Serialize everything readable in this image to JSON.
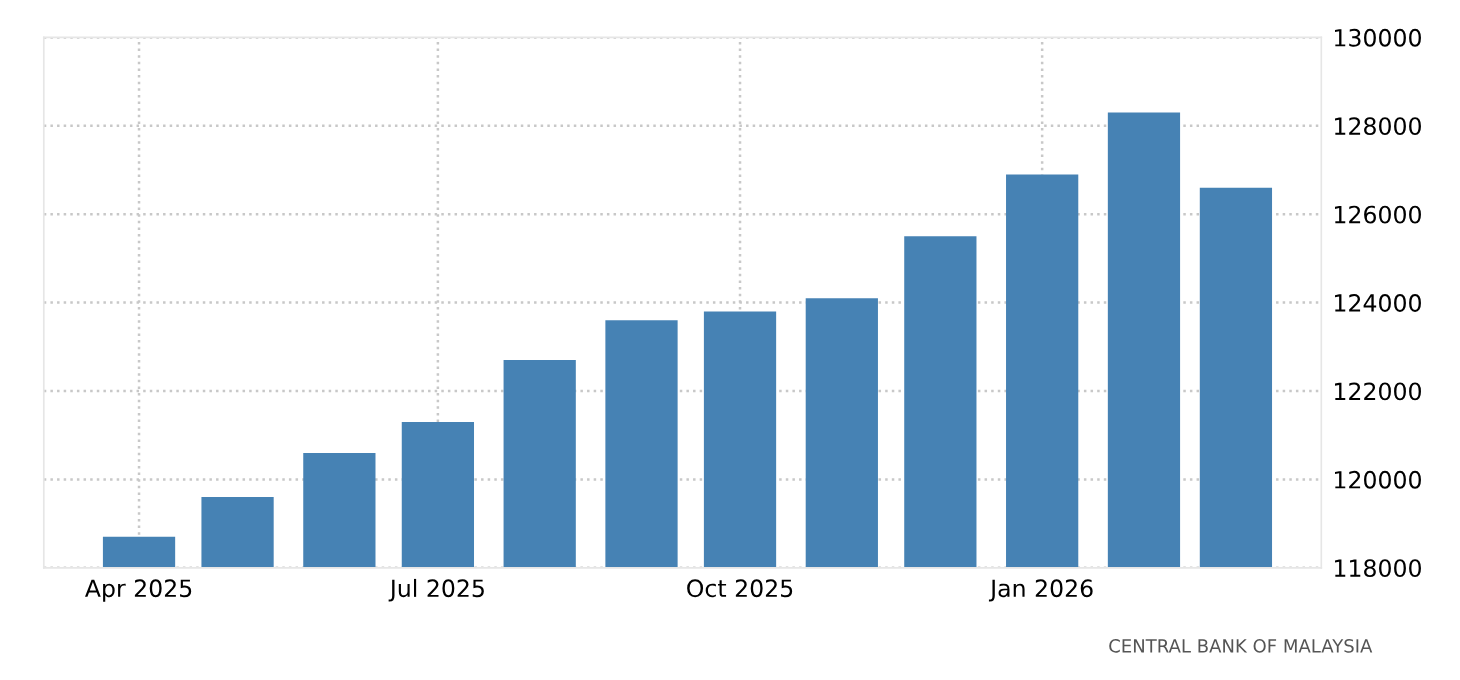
{
  "chart_data": {
    "type": "bar",
    "x": [
      "2025-04",
      "2025-05",
      "2025-06",
      "2025-07",
      "2025-08",
      "2025-09",
      "2025-10",
      "2025-11",
      "2025-12",
      "2026-01",
      "2026-02",
      "2026-03"
    ],
    "values": [
      118700,
      119600,
      120600,
      121300,
      122700,
      123600,
      123800,
      124100,
      125500,
      126900,
      128300,
      126600
    ],
    "color": "#4682b4",
    "xlim": [
      "2025-03-03",
      "2026-03-27"
    ],
    "xticks": [
      {
        "value": "2025-04",
        "label": "Apr 2025"
      },
      {
        "value": "2025-07",
        "label": "Jul 2025"
      },
      {
        "value": "2025-10",
        "label": "Oct 2025"
      },
      {
        "value": "2026-01",
        "label": "Jan 2026"
      }
    ],
    "ylim": [
      118000,
      130000
    ],
    "yticks": [
      118000,
      120000,
      122000,
      124000,
      126000,
      128000,
      130000
    ],
    "grid": true,
    "legend": false,
    "annotations": [
      "CENTRAL BANK OF MALAYSIA"
    ]
  }
}
